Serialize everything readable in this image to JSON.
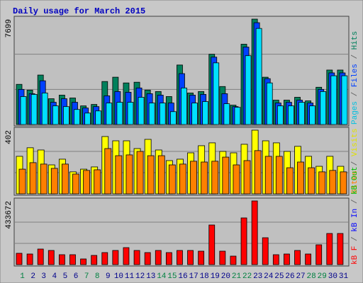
{
  "chart_data": [
    {
      "type": "bar",
      "title": "Daily usage for March 2015",
      "ylim": [
        0,
        7699
      ],
      "yticks": [
        7699
      ],
      "series": [
        {
          "name": "Hits",
          "color": "#00805c",
          "values": [
            2934,
            2514,
            3614,
            1885,
            2147,
            1938,
            1362,
            1467,
            3142,
            3457,
            3038,
            3090,
            2514,
            2409,
            2043,
            4347,
            2304,
            2409,
            5133,
            2776,
            1414,
            5866,
            7699,
            3457,
            1781,
            1781,
            1990,
            1728,
            2723,
            3980,
            3980
          ]
        },
        {
          "name": "Files",
          "color": "#0040ff",
          "values": [
            2566,
            2252,
            3195,
            1624,
            1885,
            1624,
            1205,
            1309,
            2095,
            2409,
            2357,
            2671,
            2252,
            2147,
            1571,
            3718,
            2147,
            2200,
            4923,
            2252,
            1309,
            5656,
            7437,
            3352,
            1571,
            1624,
            1781,
            1571,
            2566,
            3771,
            3771
          ]
        },
        {
          "name": "Pages",
          "color": "#00e0ff",
          "values": [
            2043,
            2200,
            2304,
            1362,
            1309,
            1100,
            838,
            995,
            1571,
            1624,
            1624,
            1990,
            1571,
            1571,
            943,
            2671,
            1571,
            1676,
            4504,
            1519,
            1257,
            5028,
            7018,
            3038,
            1362,
            1362,
            1624,
            1362,
            2409,
            3561,
            3561
          ]
        }
      ]
    },
    {
      "type": "bar",
      "ylim": [
        0,
        402
      ],
      "yticks": [
        402
      ],
      "series": [
        {
          "name": "Visits",
          "color": "#ffff00",
          "values": [
            237,
            291,
            277,
            183,
            219,
            139,
            156,
            170,
            362,
            335,
            335,
            286,
            344,
            277,
            210,
            219,
            259,
            304,
            322,
            268,
            259,
            313,
            402,
            335,
            322,
            268,
            300,
            237,
            174,
            237,
            174
          ]
        },
        {
          "name": "Sites",
          "color": "#ff8000",
          "values": [
            156,
            197,
            188,
            161,
            188,
            125,
            148,
            152,
            286,
            241,
            246,
            268,
            241,
            241,
            183,
            188,
            206,
            201,
            206,
            232,
            183,
            210,
            273,
            237,
            237,
            165,
            201,
            165,
            139,
            148,
            139
          ]
        }
      ]
    },
    {
      "type": "bar",
      "ylim": [
        0,
        433672
      ],
      "yticks": [
        433672
      ],
      "categories": [
        "1",
        "2",
        "3",
        "4",
        "5",
        "6",
        "7",
        "8",
        "9",
        "10",
        "11",
        "12",
        "13",
        "14",
        "15",
        "16",
        "17",
        "18",
        "19",
        "20",
        "21",
        "22",
        "23",
        "24",
        "25",
        "26",
        "27",
        "28",
        "29",
        "30",
        "31"
      ],
      "category_colors": [
        "#008040",
        "#00008b",
        "#00008b",
        "#00008b",
        "#00008b",
        "#00008b",
        "#008040",
        "#008040",
        "#00008b",
        "#00008b",
        "#00008b",
        "#00008b",
        "#00008b",
        "#008040",
        "#008040",
        "#00008b",
        "#00008b",
        "#00008b",
        "#00008b",
        "#00008b",
        "#008040",
        "#008040",
        "#00008b",
        "#00008b",
        "#00008b",
        "#00008b",
        "#00008b",
        "#008040",
        "#008040",
        "#00008b",
        "#00008b"
      ],
      "series": [
        {
          "name": "kB F",
          "color": "#ff0000",
          "values": [
            77104,
            72285,
            106018,
            96382,
            67466,
            67466,
            38552,
            62647,
            81923,
            96382,
            115661,
            96382,
            81923,
            96382,
            81923,
            96382,
            96382,
            91561,
            269864,
            91561,
            57828,
            318054,
            433672,
            183122,
            67466,
            72285,
            96382,
            72285,
            134932,
            212036,
            212036
          ]
        },
        {
          "name": "kB In",
          "color": "#0000ff",
          "values": [
            0,
            0,
            0,
            0,
            0,
            0,
            0,
            0,
            0,
            0,
            0,
            0,
            0,
            0,
            0,
            0,
            0,
            0,
            0,
            0,
            0,
            0,
            0,
            0,
            0,
            0,
            0,
            0,
            0,
            0,
            0
          ]
        },
        {
          "name": "kB Out",
          "color": "#00c000",
          "values": [
            0,
            0,
            0,
            0,
            0,
            0,
            0,
            0,
            0,
            0,
            0,
            0,
            0,
            0,
            0,
            0,
            0,
            0,
            0,
            0,
            0,
            0,
            0,
            0,
            0,
            0,
            0,
            0,
            0,
            0,
            0
          ]
        }
      ]
    }
  ]
}
